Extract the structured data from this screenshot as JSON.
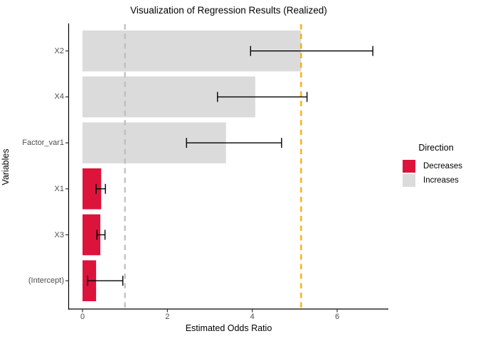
{
  "chart_data": {
    "type": "bar",
    "orientation": "horizontal",
    "title": "Visualization of Regression Results (Realized)",
    "xlabel": "Estimated Odds Ratio",
    "ylabel": "Variables",
    "xlim": [
      0,
      7.2
    ],
    "x_ticks": [
      0,
      2,
      4,
      6
    ],
    "grid": false,
    "categories": [
      "X2",
      "X4",
      "Factor_var1",
      "X1",
      "X3",
      "(Intercept)"
    ],
    "bars": [
      {
        "variable": "X2",
        "odds_ratio": 5.15,
        "ci_low": 3.96,
        "ci_high": 6.84,
        "direction": "Increases"
      },
      {
        "variable": "X4",
        "odds_ratio": 4.07,
        "ci_low": 3.18,
        "ci_high": 5.29,
        "direction": "Increases"
      },
      {
        "variable": "Factor_var1",
        "odds_ratio": 3.38,
        "ci_low": 2.45,
        "ci_high": 4.69,
        "direction": "Increases"
      },
      {
        "variable": "X1",
        "odds_ratio": 0.44,
        "ci_low": 0.32,
        "ci_high": 0.54,
        "direction": "Decreases"
      },
      {
        "variable": "X3",
        "odds_ratio": 0.42,
        "ci_low": 0.34,
        "ci_high": 0.53,
        "direction": "Decreases"
      },
      {
        "variable": "(Intercept)",
        "odds_ratio": 0.32,
        "ci_low": 0.12,
        "ci_high": 0.95,
        "direction": "Decreases"
      }
    ],
    "reference_lines": [
      {
        "x": 1.0,
        "style": "dashed",
        "color": "#bdbdbd"
      },
      {
        "x": 5.15,
        "style": "dashed",
        "color": "#ffa500"
      }
    ],
    "colors": {
      "Decreases": "#dc143c",
      "Increases": "#dbdbdb"
    },
    "errorbar_color": "#000000",
    "legend_position": "right",
    "legend": {
      "title": "Direction",
      "items": [
        {
          "label": "Decreases",
          "color": "#dc143c"
        },
        {
          "label": "Increases",
          "color": "#dbdbdb"
        }
      ]
    }
  }
}
